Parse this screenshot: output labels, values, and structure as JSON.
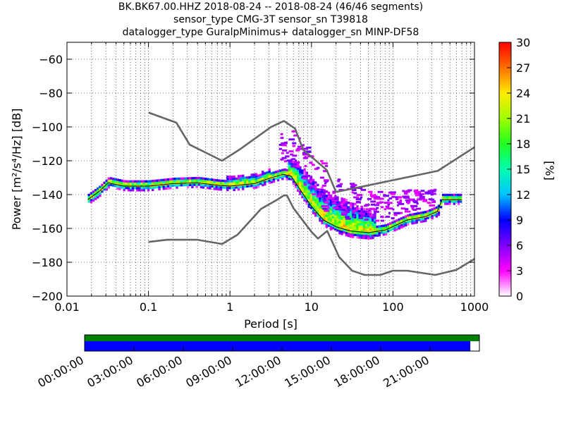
{
  "titles": [
    "BK.BK67.00.HHZ   2018-08-24 -- 2018-08-24  (46/46 segments)",
    "sensor_type CMG-3T sensor_sn T39818",
    "datalogger_type GuralpMinimus+ datalogger_sn MINP-DF58"
  ],
  "chart_data": {
    "type": "heatmap",
    "description": "probabilistic power spectral density",
    "xlabel": "Period [s]",
    "ylabel": "Power [m²/s⁴/Hz] [dB]",
    "xscale": "log",
    "xlim": [
      0.01,
      1000
    ],
    "ylim": [
      -200,
      -50
    ],
    "xticks": [
      0.01,
      0.1,
      1,
      10,
      100,
      1000
    ],
    "xtick_labels": [
      "0.01",
      "0.1",
      "1",
      "10",
      "100",
      "1000"
    ],
    "yticks": [
      -200,
      -180,
      -160,
      -140,
      -120,
      -100,
      -80,
      -60
    ],
    "ytick_labels": [
      "−200",
      "−180",
      "−160",
      "−140",
      "−120",
      "−100",
      "−80",
      "−60"
    ],
    "grid": true,
    "colorbar": {
      "label": "[%]",
      "range": [
        0,
        30
      ],
      "ticks": [
        0,
        3,
        6,
        9,
        12,
        15,
        18,
        21,
        24,
        27,
        30
      ]
    },
    "series": [
      {
        "name": "",
        "role": "noise model upper",
        "color": "#666666",
        "points": [
          [
            0.1,
            -91.5
          ],
          [
            0.22,
            -97.5
          ],
          [
            0.32,
            -110.5
          ],
          [
            0.8,
            -120
          ],
          [
            1.3,
            -113.5
          ],
          [
            3.2,
            -100
          ],
          [
            4.6,
            -96.5
          ],
          [
            6.3,
            -101
          ],
          [
            7.9,
            -113.5
          ],
          [
            15.4,
            -125.5
          ],
          [
            20,
            -138.5
          ],
          [
            354,
            -126
          ],
          [
            1000,
            -112
          ]
        ]
      },
      {
        "name": "",
        "role": "noise model lower",
        "color": "#666666",
        "points": [
          [
            0.1,
            -168
          ],
          [
            0.17,
            -166.7
          ],
          [
            0.4,
            -166.7
          ],
          [
            0.8,
            -169.2
          ],
          [
            1.24,
            -163.7
          ],
          [
            2.4,
            -148.5
          ],
          [
            3.8,
            -143
          ],
          [
            4.6,
            -140.5
          ],
          [
            5.0,
            -140.5
          ],
          [
            6.0,
            -148
          ],
          [
            10,
            -162
          ],
          [
            12,
            -166
          ],
          [
            15.6,
            -161.5
          ],
          [
            21.9,
            -177
          ],
          [
            31.6,
            -185
          ],
          [
            45,
            -187.5
          ],
          [
            70,
            -187.5
          ],
          [
            100,
            -185
          ],
          [
            150,
            -185
          ],
          [
            330,
            -187.5
          ],
          [
            600,
            -184.5
          ],
          [
            1000,
            -178
          ]
        ]
      },
      {
        "name": "",
        "role": "mode",
        "color": "#000000",
        "points": [
          [
            0.018,
            -143
          ],
          [
            0.025,
            -138
          ],
          [
            0.032,
            -133
          ],
          [
            0.05,
            -135
          ],
          [
            0.1,
            -135
          ],
          [
            0.2,
            -133.5
          ],
          [
            0.4,
            -133
          ],
          [
            0.7,
            -134.5
          ],
          [
            1.0,
            -135
          ],
          [
            2.0,
            -133.5
          ],
          [
            3.0,
            -130.5
          ],
          [
            4.5,
            -128
          ],
          [
            5.6,
            -129
          ],
          [
            7.0,
            -136
          ],
          [
            10,
            -147
          ],
          [
            14,
            -155
          ],
          [
            20,
            -159
          ],
          [
            30,
            -161.5
          ],
          [
            50,
            -162.5
          ],
          [
            80,
            -161
          ],
          [
            150,
            -155
          ],
          [
            250,
            -153
          ],
          [
            350,
            -150
          ],
          [
            400,
            -143
          ],
          [
            700,
            -143
          ]
        ]
      }
    ]
  },
  "time_axis": {
    "tick_labels": [
      "00:00:00",
      "03:00:00",
      "06:00:00",
      "09:00:00",
      "12:00:00",
      "15:00:00",
      "18:00:00",
      "21:00:00"
    ],
    "data_coverage_fraction": 0.977,
    "gap_coverage_fraction": 1.0,
    "data_color": "#0000ff",
    "gap_color": "#008000"
  }
}
